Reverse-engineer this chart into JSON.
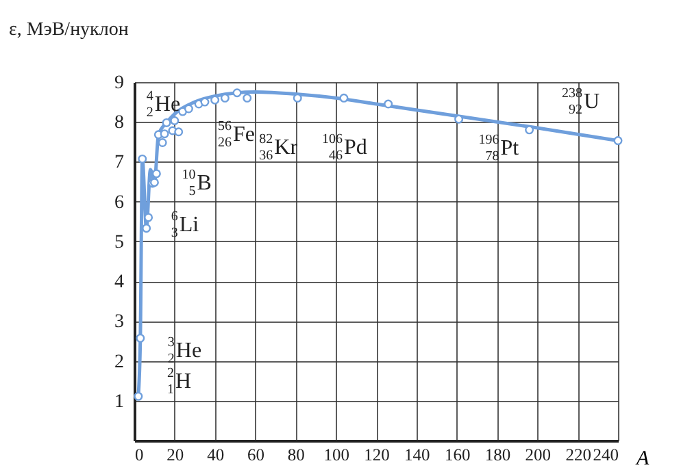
{
  "chart_data": {
    "type": "line",
    "xlabel": "A",
    "ylabel": "ε, МэВ/нуклон",
    "xlim": [
      0,
      240
    ],
    "xticks": [
      0,
      20,
      40,
      60,
      80,
      100,
      120,
      140,
      160,
      180,
      200,
      220,
      240
    ],
    "ylim": [
      0,
      9
    ],
    "yticks": [
      1,
      2,
      3,
      4,
      5,
      6,
      7,
      8,
      9
    ],
    "grid": true,
    "series": [
      {
        "color": "#6f9fdc",
        "x": [
          2,
          3,
          4,
          6,
          8,
          10,
          12,
          16,
          20,
          30,
          40,
          60,
          80,
          100,
          120,
          160,
          200,
          240
        ],
        "values": [
          1.11,
          2.57,
          7.07,
          5.33,
          6.8,
          6.48,
          7.68,
          7.98,
          8.2,
          8.5,
          8.65,
          8.75,
          8.7,
          8.6,
          8.45,
          8.15,
          7.85,
          7.53
        ]
      },
      {
        "type": "scatter",
        "color": "#6f9fdc",
        "x": [
          2,
          3,
          4,
          6,
          7,
          9,
          10,
          11,
          12,
          14,
          15,
          16,
          19,
          20,
          22,
          24,
          27,
          32,
          35,
          40,
          45,
          51,
          56,
          81,
          104,
          126,
          161,
          196,
          240
        ],
        "values": [
          1.11,
          2.57,
          7.07,
          5.33,
          5.6,
          6.46,
          6.48,
          6.7,
          7.68,
          7.48,
          7.7,
          7.98,
          7.78,
          8.03,
          7.75,
          8.26,
          8.33,
          8.45,
          8.5,
          8.55,
          8.6,
          8.73,
          8.6,
          8.6,
          8.6,
          8.45,
          8.07,
          7.8,
          7.53
        ]
      }
    ],
    "annotations": [
      {
        "text": "$^{4}$$_{2}$He",
        "x": 4,
        "y": 7.07
      },
      {
        "text": "$^{10}$$_{5}$B",
        "x": 10,
        "y": 6.48
      },
      {
        "text": "$^{6}$$_{3}$Li",
        "x": 6,
        "y": 5.33
      },
      {
        "text": "$^{3}$$_{2}$He",
        "x": 3,
        "y": 2.57
      },
      {
        "text": "$^{2}$$_{1}$H",
        "x": 2,
        "y": 1.11
      },
      {
        "text": "$^{56}$$_{26}$Fe",
        "x": 51,
        "y": 8.73
      },
      {
        "text": "$^{82}$$_{36}$Kr",
        "x": 81,
        "y": 8.6
      },
      {
        "text": "$^{106}$$_{46}$Pd",
        "x": 104,
        "y": 8.6
      },
      {
        "text": "$^{196}$$_{78}$Pt",
        "x": 196,
        "y": 7.8
      },
      {
        "text": "$^{238}$$_{92}$U",
        "x": 240,
        "y": 7.53
      }
    ]
  }
}
